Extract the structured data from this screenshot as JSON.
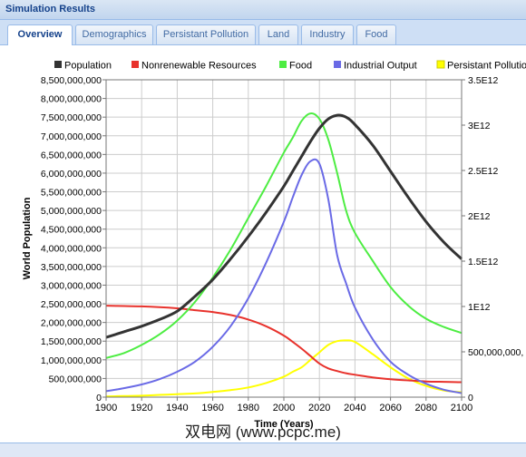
{
  "window": {
    "title": "Simulation Results"
  },
  "tabs": [
    {
      "label": "Overview",
      "active": true
    },
    {
      "label": "Demographics",
      "active": false
    },
    {
      "label": "Persistant Pollution",
      "active": false
    },
    {
      "label": "Land",
      "active": false
    },
    {
      "label": "Industry",
      "active": false
    },
    {
      "label": "Food",
      "active": false
    }
  ],
  "watermark": "双电网 (www.pcpc.me)",
  "chart_data": {
    "type": "line",
    "xlabel": "Time (Years)",
    "ylabel": "World Population",
    "xlim": [
      1900,
      2100
    ],
    "x_ticks": [
      "1900",
      "1920",
      "1940",
      "1960",
      "1980",
      "2000",
      "2020",
      "2040",
      "2060",
      "2080",
      "2100"
    ],
    "ylim_left": [
      0,
      8500000000
    ],
    "y_ticks_left": [
      "0",
      "500,000,000",
      "1,000,000,000",
      "1,500,000,000",
      "2,000,000,000",
      "2,500,000,000",
      "3,000,000,000",
      "3,500,000,000",
      "4,000,000,000",
      "4,500,000,000",
      "5,000,000,000",
      "5,500,000,000",
      "6,000,000,000",
      "6,500,000,000",
      "7,000,000,000",
      "7,500,000,000",
      "8,000,000,000",
      "8,500,000,000"
    ],
    "ylim_right": [
      0,
      3500000000000
    ],
    "y_ticks_right": [
      "0",
      "500,000,000,",
      "1E12",
      "1.5E12",
      "2E12",
      "2.5E12",
      "3E12",
      "3.5E12"
    ],
    "grid": true,
    "legend_position": "top",
    "x": [
      1900,
      1910,
      1920,
      1930,
      1940,
      1950,
      1960,
      1970,
      1980,
      1990,
      2000,
      2005,
      2010,
      2015,
      2020,
      2025,
      2030,
      2035,
      2040,
      2050,
      2060,
      2070,
      2080,
      2090,
      2100
    ],
    "series": [
      {
        "name": "Population",
        "color": "#333333",
        "axis": "left",
        "values": [
          1600000000,
          1750000000,
          1900000000,
          2080000000,
          2300000000,
          2700000000,
          3150000000,
          3700000000,
          4300000000,
          4950000000,
          5650000000,
          6050000000,
          6450000000,
          6850000000,
          7200000000,
          7450000000,
          7550000000,
          7500000000,
          7300000000,
          6750000000,
          6050000000,
          5350000000,
          4700000000,
          4150000000,
          3700000000
        ]
      },
      {
        "name": "Nonrenewable Resources",
        "color": "#e8322c",
        "axis": "left",
        "values": [
          2450000000,
          2440000000,
          2430000000,
          2410000000,
          2380000000,
          2330000000,
          2280000000,
          2200000000,
          2080000000,
          1900000000,
          1650000000,
          1480000000,
          1300000000,
          1100000000,
          900000000,
          770000000,
          700000000,
          640000000,
          600000000,
          530000000,
          480000000,
          450000000,
          420000000,
          410000000,
          400000000
        ]
      },
      {
        "name": "Food",
        "color": "#4ded42",
        "axis": "left",
        "values": [
          1050000000,
          1180000000,
          1400000000,
          1680000000,
          2050000000,
          2550000000,
          3200000000,
          3950000000,
          4800000000,
          5650000000,
          6550000000,
          6950000000,
          7400000000,
          7600000000,
          7450000000,
          6900000000,
          6000000000,
          5000000000,
          4400000000,
          3650000000,
          2950000000,
          2450000000,
          2100000000,
          1880000000,
          1720000000
        ]
      },
      {
        "name": "Industrial Output",
        "color": "#6a6ae6",
        "axis": "left",
        "values": [
          160000000,
          240000000,
          340000000,
          480000000,
          680000000,
          950000000,
          1350000000,
          1900000000,
          2650000000,
          3600000000,
          4700000000,
          5350000000,
          5950000000,
          6320000000,
          6250000000,
          5300000000,
          3800000000,
          3050000000,
          2400000000,
          1550000000,
          950000000,
          600000000,
          360000000,
          200000000,
          110000000
        ]
      },
      {
        "name": "Persistant Pollution",
        "color": "#ffff00",
        "axis": "left",
        "values": [
          20000000,
          30000000,
          40000000,
          60000000,
          80000000,
          100000000,
          140000000,
          190000000,
          260000000,
          380000000,
          550000000,
          680000000,
          800000000,
          1000000000,
          1200000000,
          1400000000,
          1500000000,
          1520000000,
          1480000000,
          1150000000,
          800000000,
          500000000,
          300000000,
          180000000,
          130000000
        ]
      }
    ]
  }
}
